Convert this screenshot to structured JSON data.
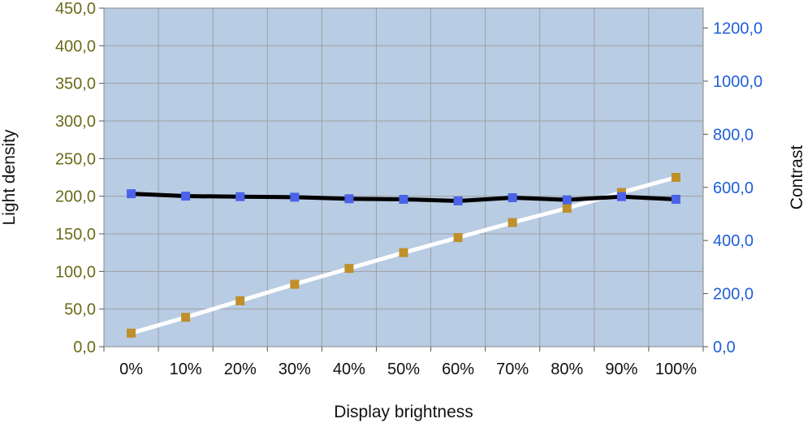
{
  "chart_data": {
    "type": "line",
    "title": "",
    "xlabel": "Display brightness",
    "ylabel_left": "Light density",
    "ylabel_right": "Contrast",
    "categories": [
      "0%",
      "10%",
      "20%",
      "30%",
      "40%",
      "50%",
      "60%",
      "70%",
      "80%",
      "90%",
      "100%"
    ],
    "ylim_left": [
      0,
      450
    ],
    "ylim_right": [
      0,
      1275
    ],
    "left_ticks": [
      "0,0",
      "50,0",
      "100,0",
      "150,0",
      "200,0",
      "250,0",
      "300,0",
      "350,0",
      "400,0",
      "450,0"
    ],
    "right_ticks": [
      "0,0",
      "200,0",
      "400,0",
      "600,0",
      "800,0",
      "1000,0",
      "1200,0"
    ],
    "grid": true,
    "series": [
      {
        "axis": "left",
        "line_color": "#ffffff",
        "marker_color": "#bf8f2a",
        "values": [
          18,
          39,
          61,
          83,
          104,
          125,
          145,
          165,
          184,
          205,
          225
        ]
      },
      {
        "axis": "right",
        "line_color": "#000000",
        "marker_color": "#4a63e8",
        "values": [
          576,
          567,
          565,
          563,
          557,
          555,
          549,
          561,
          553,
          565,
          555
        ]
      }
    ],
    "colors": {
      "plot_bg": "#b8cce4",
      "grid": "#a0a0a0",
      "left_tick_text": "#6b6b1a",
      "right_tick_text": "#1f5fd6"
    }
  }
}
